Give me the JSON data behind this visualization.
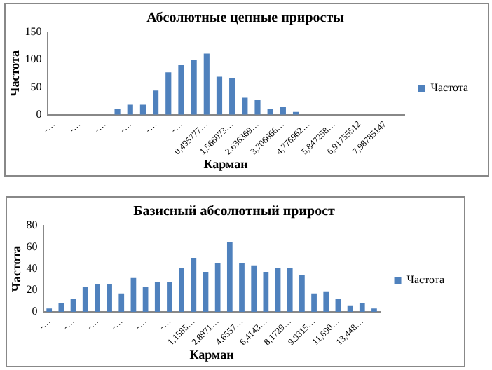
{
  "chart_data": [
    {
      "type": "bar",
      "title": "Абсолютные цепные приросты",
      "xlabel": "Карман",
      "ylabel": "Частота",
      "categories": [
        "-…",
        null,
        "-…",
        null,
        "-…",
        null,
        "-…",
        null,
        "-…",
        null,
        "-…",
        null,
        "0,495777…",
        null,
        "1,566073…",
        null,
        "2,636369…",
        null,
        "3,706666…",
        null,
        "4,776962…",
        null,
        "5,847258…",
        null,
        "6,91755512",
        null,
        "7,98785147",
        null
      ],
      "series": [
        {
          "name": "Частота",
          "color": "#4f81bd",
          "values": [
            0,
            0,
            0,
            0,
            0,
            10,
            18,
            18,
            44,
            77,
            90,
            100,
            111,
            69,
            66,
            31,
            27,
            10,
            14,
            5,
            0,
            0,
            0,
            0,
            0,
            0,
            0,
            0
          ]
        }
      ],
      "ylim": [
        0,
        150
      ],
      "yticks": [
        0,
        50,
        100,
        150
      ],
      "grid": false,
      "legend": "right"
    },
    {
      "type": "bar",
      "title": "Базисный абсолютный прирост",
      "xlabel": "Карман",
      "ylabel": "Частота",
      "categories": [
        "-…",
        null,
        "-…",
        null,
        "-…",
        null,
        "-…",
        null,
        "-…",
        null,
        "-…",
        null,
        "1,1585…",
        null,
        "2,8971…",
        null,
        "4,6557…",
        null,
        "6,4143…",
        null,
        "8,1729…",
        null,
        "9,9315…",
        null,
        "11,690…",
        null,
        "13,448…",
        null
      ],
      "series": [
        {
          "name": "Частота",
          "color": "#4f81bd",
          "values": [
            3,
            8,
            12,
            23,
            26,
            26,
            17,
            32,
            23,
            28,
            28,
            41,
            50,
            37,
            45,
            65,
            45,
            43,
            37,
            41,
            41,
            34,
            17,
            19,
            12,
            6,
            8,
            3
          ]
        }
      ],
      "ylim": [
        0,
        80
      ],
      "yticks": [
        0,
        20,
        40,
        60,
        80
      ],
      "grid": false,
      "legend": "right"
    }
  ]
}
